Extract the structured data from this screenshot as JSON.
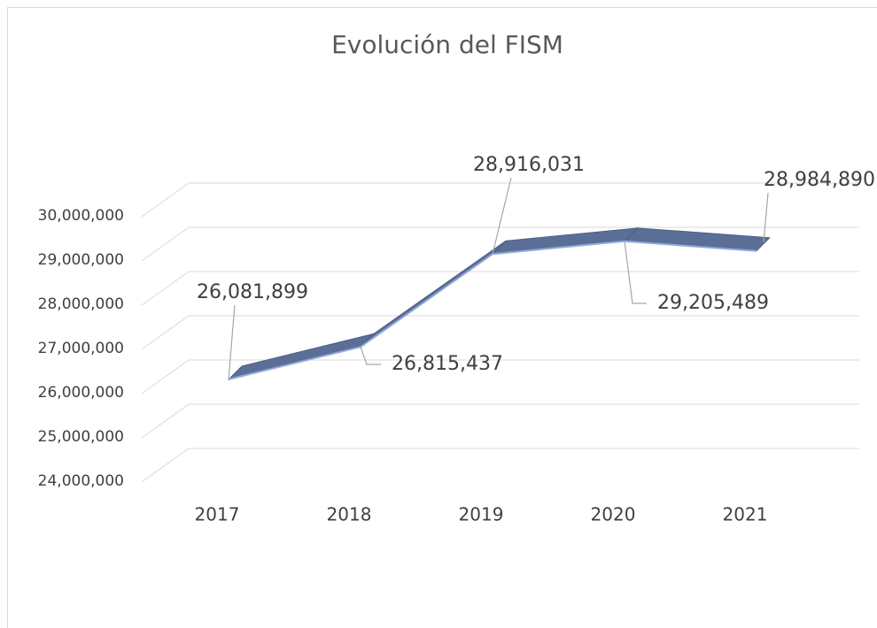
{
  "chart_data": {
    "type": "line3d",
    "title": "Evolución del FISM",
    "categories": [
      "2017",
      "2018",
      "2019",
      "2020",
      "2021"
    ],
    "series": [
      {
        "name": "FISM",
        "color": "#5b6e96",
        "values": [
          26081899,
          26815437,
          28916031,
          29205489,
          28984890
        ],
        "value_labels": [
          "26,081,899",
          "26,815,437",
          "28,916,031",
          "29,205,489",
          "28,984,890"
        ]
      }
    ],
    "ylim": [
      24000000,
      30000000
    ],
    "yticks": [
      {
        "value": 24000000,
        "label": "24,000,000"
      },
      {
        "value": 25000000,
        "label": "25,000,000"
      },
      {
        "value": 26000000,
        "label": "26,000,000"
      },
      {
        "value": 27000000,
        "label": "27,000,000"
      },
      {
        "value": 28000000,
        "label": "28,000,000"
      },
      {
        "value": 29000000,
        "label": "29,000,000"
      },
      {
        "value": 30000000,
        "label": "30,000,000"
      }
    ],
    "grid": true
  }
}
